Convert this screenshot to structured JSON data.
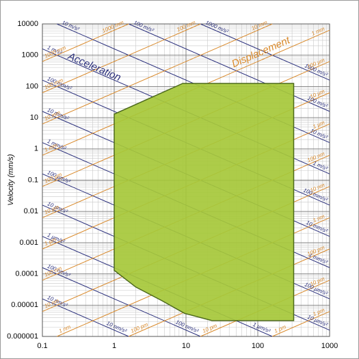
{
  "chart_data": {
    "type": "area",
    "y_label": "Velocity (mm/s)",
    "x": [
      1,
      1,
      9,
      316,
      316,
      23,
      9.5,
      4.6,
      2
    ],
    "values": [
      0.00013,
      13,
      125,
      125,
      3.2e-06,
      3.2e-06,
      5.5e-06,
      1.4e-05,
      3.8e-05
    ],
    "color": "#a6c83a",
    "edge_color": "#4d6a1c",
    "xlim": [
      0.1,
      1000
    ],
    "ylim": [
      1e-06,
      10000
    ],
    "xticks": [
      0.1,
      1,
      10,
      100,
      1000
    ],
    "yticks": [
      10000,
      1000,
      100,
      10,
      1,
      0.1,
      0.01,
      0.001,
      0.0001,
      1e-05,
      1e-06
    ],
    "log_x": true,
    "log_y": true,
    "grid": true,
    "minor_grid": true,
    "acceleration_color": "#2a2f7c",
    "displacement_color": "#d9892a",
    "acceleration_lines": [
      {
        "label": "1000 m/s²",
        "value": 1000000
      },
      {
        "label": "100 m/s²",
        "value": 100000
      },
      {
        "label": "10 m/s²",
        "value": 10000
      },
      {
        "label": "1 m/s²",
        "value": 1000
      },
      {
        "label": "100 mm/s²",
        "value": 100
      },
      {
        "label": "10 mm/s²",
        "value": 10
      },
      {
        "label": "1 mm/s²",
        "value": 1
      },
      {
        "label": "100 µm/s²",
        "value": 0.1
      },
      {
        "label": "10 µm/s²",
        "value": 0.01
      },
      {
        "label": "1 µm/s²",
        "value": 0.001
      },
      {
        "label": "100 nm/s²",
        "value": 0.0001
      },
      {
        "label": "10 nm/s²",
        "value": 1e-05
      }
    ],
    "displacement_lines": [
      {
        "label": "1000 mm",
        "value": 1000
      },
      {
        "label": "100 mm",
        "value": 100
      },
      {
        "label": "10 mm",
        "value": 10
      },
      {
        "label": "1 mm",
        "value": 1
      },
      {
        "label": "100 µm",
        "value": 0.1
      },
      {
        "label": "10 µm",
        "value": 0.01
      },
      {
        "label": "1 µm",
        "value": 0.001
      },
      {
        "label": "100 nm",
        "value": 0.0001
      },
      {
        "label": "10 nm",
        "value": 1e-05
      },
      {
        "label": "1 nm",
        "value": 1e-06
      },
      {
        "label": "100 pm",
        "value": 1e-07
      },
      {
        "label": "10 pm",
        "value": 1e-08
      },
      {
        "label": "1 pm",
        "value": 1e-09
      }
    ],
    "annotations": [
      {
        "text": "Acceleration",
        "color": "#2a2f7c"
      },
      {
        "text": "Displacement",
        "color": "#d9892a"
      }
    ]
  }
}
